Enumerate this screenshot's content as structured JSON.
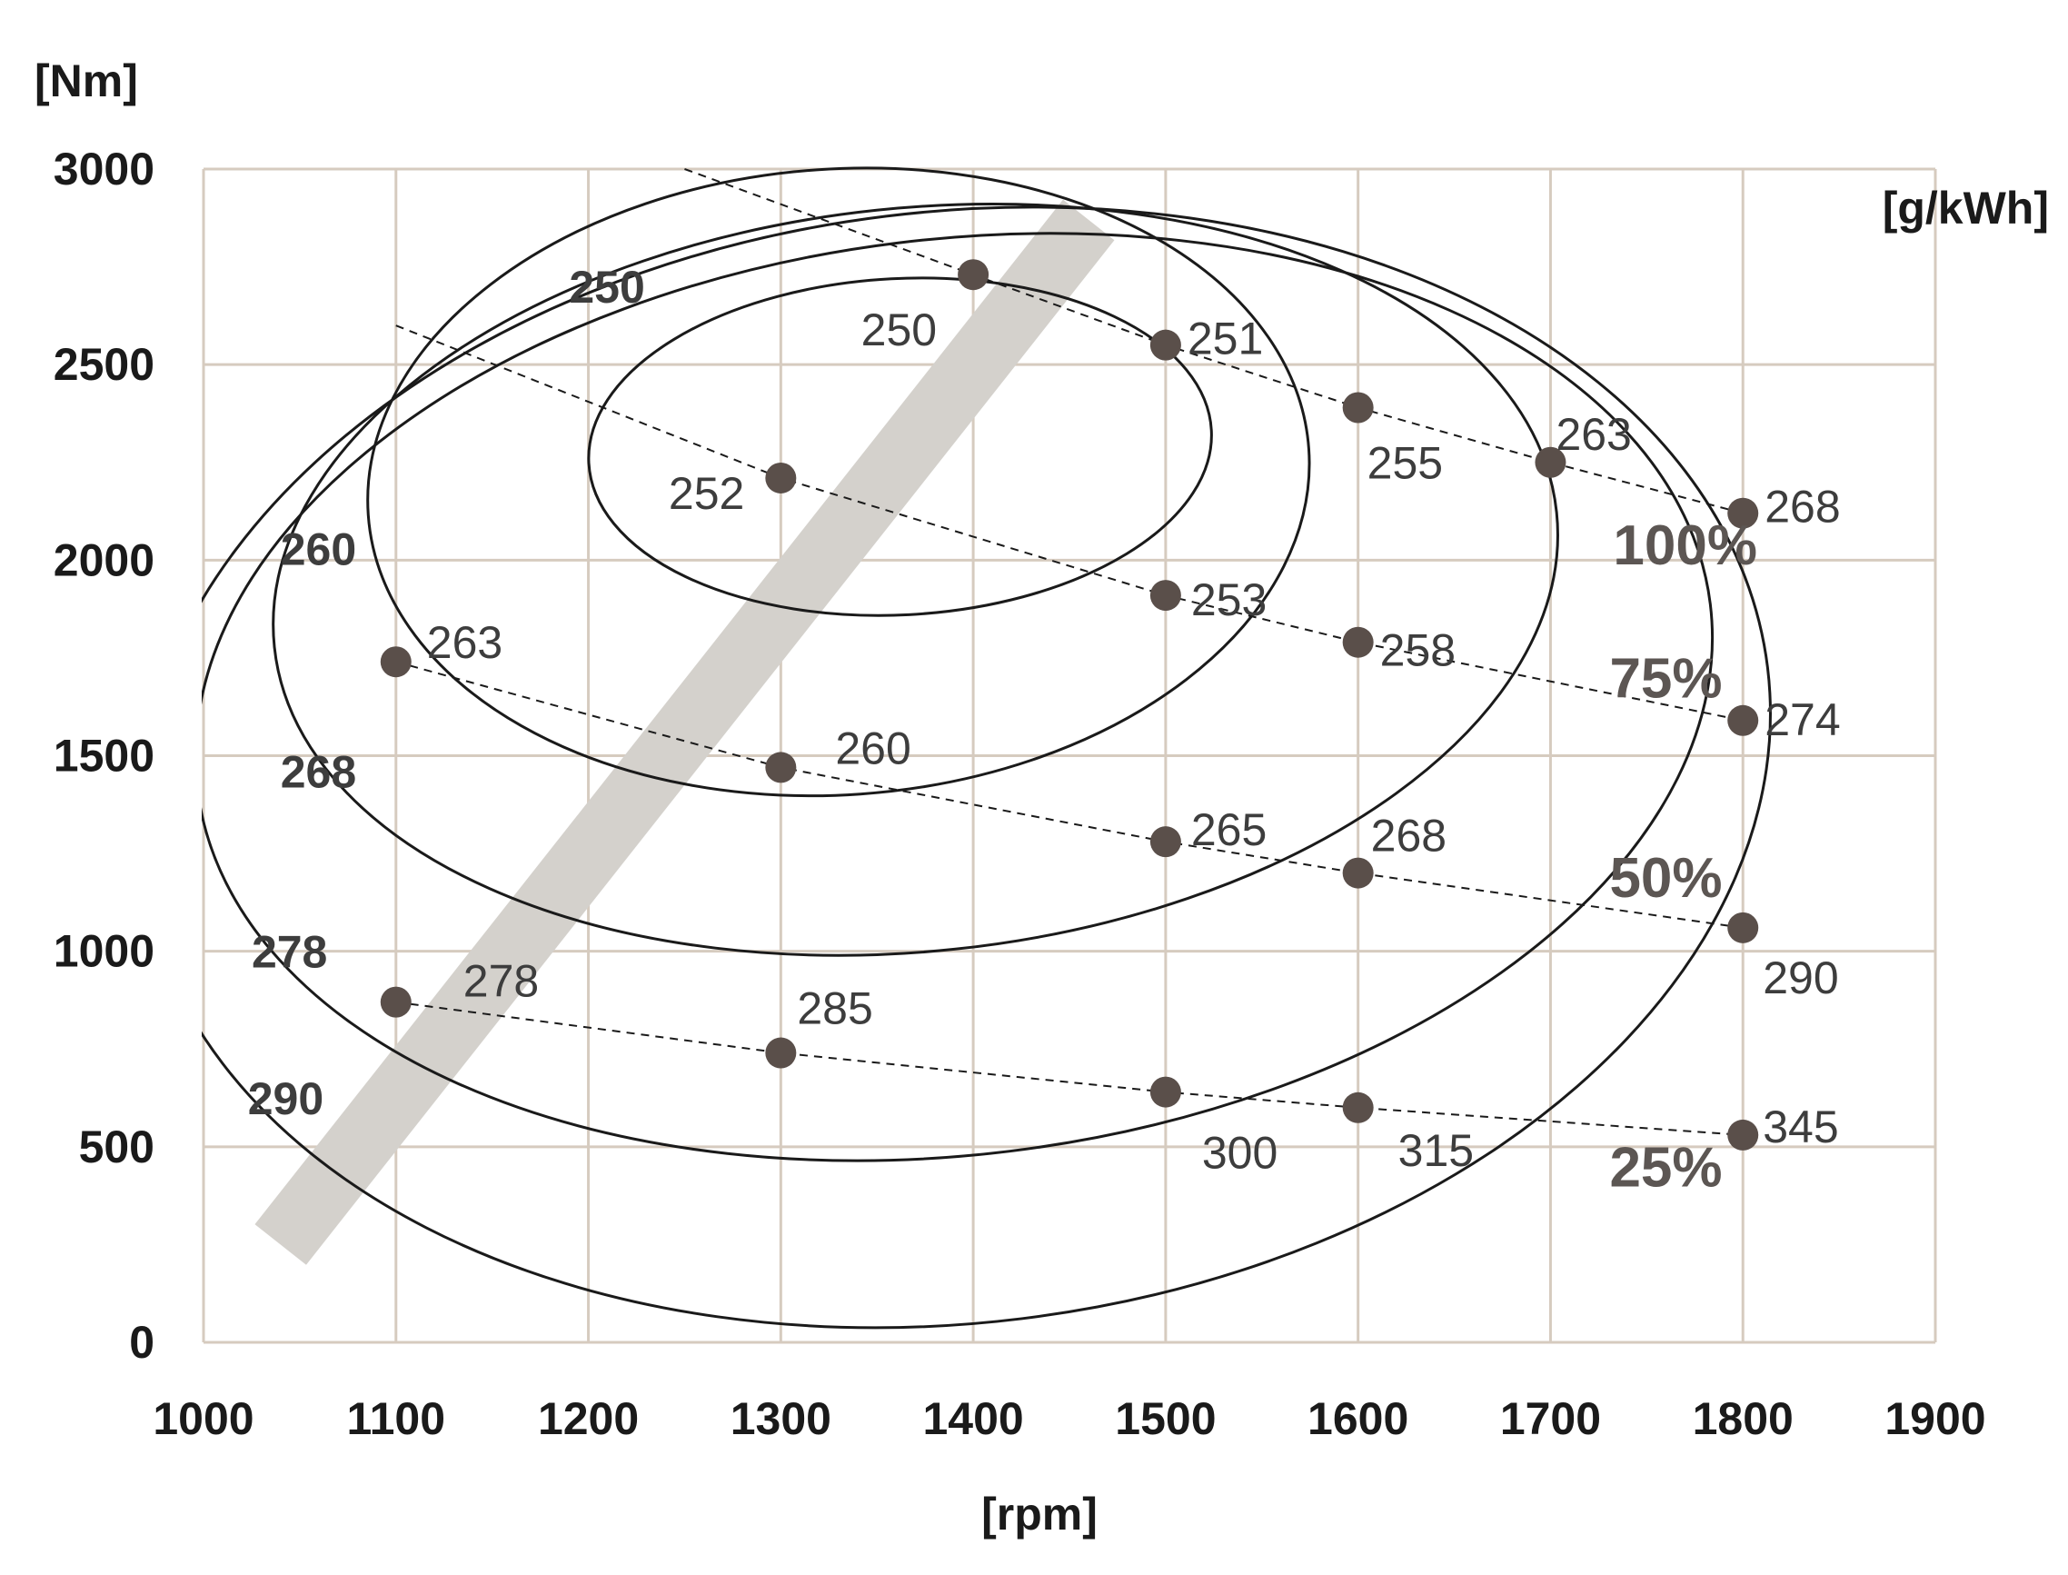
{
  "chart_data": {
    "type": "scatter",
    "title": "",
    "xlabel": "[rpm]",
    "ylabel": "[Nm]",
    "zlabel": "[g/kWh]",
    "xlim": [
      1000,
      1900
    ],
    "ylim": [
      0,
      3000
    ],
    "xticks": [
      "1000",
      "1100",
      "1200",
      "1300",
      "1400",
      "1500",
      "1600",
      "1700",
      "1800",
      "1900"
    ],
    "yticks": [
      "0",
      "500",
      "1000",
      "1500",
      "2000",
      "2500",
      "3000"
    ],
    "grid": true,
    "series": [
      {
        "name": "100%",
        "points": [
          {
            "x": 1400,
            "y": 2730,
            "label": "250"
          },
          {
            "x": 1500,
            "y": 2550,
            "label": "251"
          },
          {
            "x": 1600,
            "y": 2390,
            "label": "255"
          },
          {
            "x": 1700,
            "y": 2250,
            "label": "263"
          },
          {
            "x": 1800,
            "y": 2120,
            "label": "268"
          }
        ]
      },
      {
        "name": "75%",
        "points": [
          {
            "x": 1300,
            "y": 2210,
            "label": "252"
          },
          {
            "x": 1500,
            "y": 1910,
            "label": "253"
          },
          {
            "x": 1600,
            "y": 1790,
            "label": "258"
          },
          {
            "x": 1800,
            "y": 1590,
            "label": "274"
          }
        ]
      },
      {
        "name": "50%",
        "points": [
          {
            "x": 1100,
            "y": 1740,
            "label": "263"
          },
          {
            "x": 1300,
            "y": 1470,
            "label": "260"
          },
          {
            "x": 1500,
            "y": 1280,
            "label": "265"
          },
          {
            "x": 1600,
            "y": 1200,
            "label": "268"
          },
          {
            "x": 1800,
            "y": 1060,
            "label": "290"
          }
        ]
      },
      {
        "name": "25%",
        "points": [
          {
            "x": 1100,
            "y": 870,
            "label": "278"
          },
          {
            "x": 1300,
            "y": 740,
            "label": "285"
          },
          {
            "x": 1500,
            "y": 640,
            "label": "300"
          },
          {
            "x": 1600,
            "y": 600,
            "label": "315"
          },
          {
            "x": 1800,
            "y": 530,
            "label": "345"
          }
        ]
      }
    ],
    "contours": [
      {
        "label": "250",
        "center": [
          1362,
          2290
        ],
        "radii": [
          162,
          430
        ],
        "angle": -3
      },
      {
        "label": "260",
        "center": [
          1330,
          2200
        ],
        "radii": [
          245,
          800
        ],
        "angle": -4
      },
      {
        "label": "268",
        "center": [
          1370,
          1950
        ],
        "radii": [
          335,
          950
        ],
        "angle": -6
      },
      {
        "label": "278",
        "center": [
          1390,
          1650
        ],
        "radii": [
          396,
          1170
        ],
        "angle": -7
      },
      {
        "label": "290",
        "center": [
          1390,
          1470
        ],
        "radii": [
          426,
          1420
        ],
        "angle": -7
      }
    ],
    "optimal_band": {
      "from": [
        1040,
        250
      ],
      "to": [
        1460,
        2870
      ]
    },
    "colors": {
      "points": "#5a4f4a",
      "band": "#d4d1cc",
      "grid": "#d6cbbf"
    }
  }
}
